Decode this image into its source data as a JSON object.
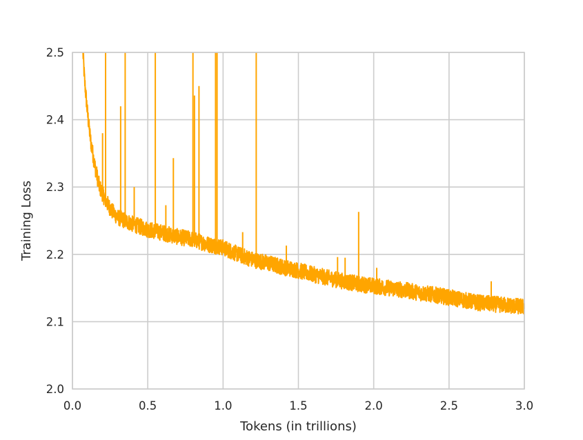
{
  "chart_data": {
    "type": "line",
    "title": "",
    "xlabel": "Tokens (in trillions)",
    "ylabel": "Training Loss",
    "xlim": [
      0.0,
      3.0
    ],
    "ylim": [
      2.0,
      2.5
    ],
    "x_ticks": [
      "0.0",
      "0.5",
      "1.0",
      "1.5",
      "2.0",
      "2.5",
      "3.0"
    ],
    "y_ticks": [
      "2.0",
      "2.1",
      "2.2",
      "2.3",
      "2.4",
      "2.5"
    ],
    "grid": true,
    "legend": "none",
    "series": [
      {
        "color": "#FFA500",
        "noise_band": 0.012,
        "points": [
          [
            0.07,
            2.5
          ],
          [
            0.08,
            2.46
          ],
          [
            0.1,
            2.41
          ],
          [
            0.12,
            2.37
          ],
          [
            0.15,
            2.33
          ],
          [
            0.18,
            2.3
          ],
          [
            0.22,
            2.28
          ],
          [
            0.26,
            2.265
          ],
          [
            0.3,
            2.255
          ],
          [
            0.35,
            2.25
          ],
          [
            0.4,
            2.245
          ],
          [
            0.5,
            2.237
          ],
          [
            0.6,
            2.232
          ],
          [
            0.7,
            2.226
          ],
          [
            0.8,
            2.222
          ],
          [
            0.9,
            2.215
          ],
          [
            1.0,
            2.21
          ],
          [
            1.1,
            2.2
          ],
          [
            1.2,
            2.192
          ],
          [
            1.3,
            2.187
          ],
          [
            1.4,
            2.181
          ],
          [
            1.5,
            2.176
          ],
          [
            1.6,
            2.17
          ],
          [
            1.7,
            2.165
          ],
          [
            1.8,
            2.16
          ],
          [
            1.9,
            2.156
          ],
          [
            2.0,
            2.153
          ],
          [
            2.1,
            2.15
          ],
          [
            2.2,
            2.147
          ],
          [
            2.3,
            2.143
          ],
          [
            2.4,
            2.14
          ],
          [
            2.5,
            2.136
          ],
          [
            2.6,
            2.132
          ],
          [
            2.7,
            2.128
          ],
          [
            2.8,
            2.126
          ],
          [
            2.9,
            2.124
          ],
          [
            3.0,
            2.122
          ]
        ],
        "spikes": [
          [
            0.2,
            2.38
          ],
          [
            0.22,
            2.5
          ],
          [
            0.32,
            2.42
          ],
          [
            0.35,
            2.5
          ],
          [
            0.41,
            2.3
          ],
          [
            0.55,
            2.5
          ],
          [
            0.62,
            2.273
          ],
          [
            0.67,
            2.343
          ],
          [
            0.8,
            2.5
          ],
          [
            0.81,
            2.436
          ],
          [
            0.84,
            2.45
          ],
          [
            0.95,
            2.5
          ],
          [
            0.96,
            2.5
          ],
          [
            1.13,
            2.233
          ],
          [
            1.22,
            2.5
          ],
          [
            1.42,
            2.213
          ],
          [
            1.76,
            2.196
          ],
          [
            1.81,
            2.195
          ],
          [
            1.9,
            2.263
          ],
          [
            2.02,
            2.18
          ],
          [
            2.78,
            2.16
          ]
        ]
      }
    ]
  }
}
